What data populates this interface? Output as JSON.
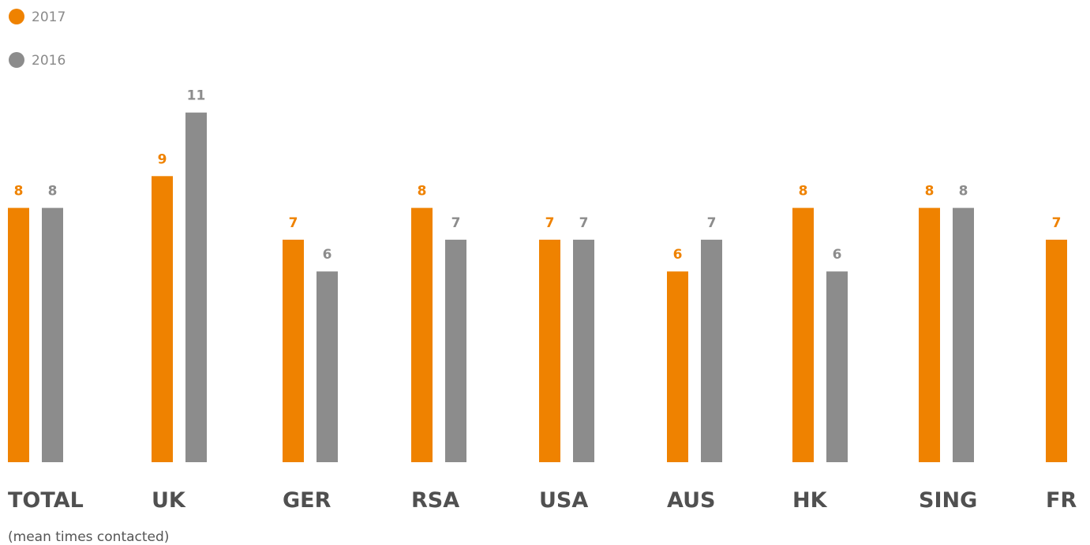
{
  "chart_data": {
    "type": "bar",
    "categories": [
      "TOTAL",
      "UK",
      "GER",
      "RSA",
      "USA",
      "AUS",
      "HK",
      "SING",
      "FR"
    ],
    "series": [
      {
        "name": "2017",
        "values": [
          8,
          9,
          7,
          8,
          7,
          6,
          8,
          8,
          7
        ]
      },
      {
        "name": "2016",
        "values": [
          8,
          11,
          6,
          7,
          7,
          7,
          6,
          8,
          null
        ]
      }
    ],
    "title": "",
    "xlabel": "",
    "ylabel": "",
    "ylim": [
      0,
      11
    ],
    "grid": false,
    "legend_position": "top-left",
    "note": "(mean times contacted)"
  },
  "colors": {
    "2017": "#ef8200",
    "2016": "#8c8c8c",
    "category_text": "#505050"
  }
}
